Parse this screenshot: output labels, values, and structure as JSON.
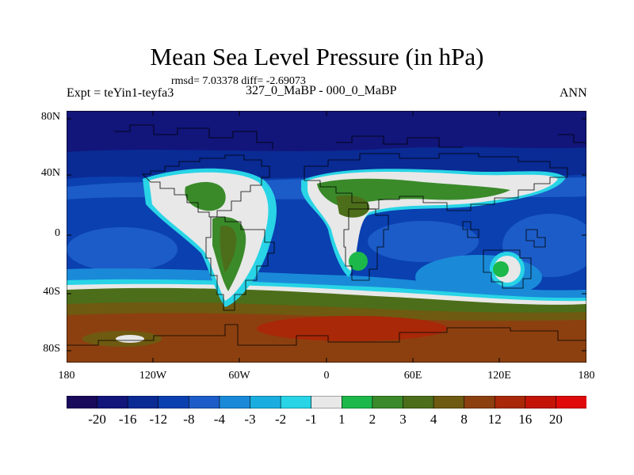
{
  "title": "Mean Sea Level Pressure (in hPa)",
  "stats": "rmsd= 7.03378 diff= -2.69073",
  "left_label": "Expt = teYin1-teyfa3",
  "center_label": "327_0_MaBP - 000_0_MaBP",
  "right_label": "ANN",
  "lat_labels": [
    "80N",
    "40N",
    "0",
    "40S",
    "80S"
  ],
  "lon_labels": [
    "180",
    "120W",
    "60W",
    "0",
    "60E",
    "120E",
    "180"
  ],
  "colorbar": {
    "colors": [
      "#1a0a5c",
      "#12157a",
      "#0a2a94",
      "#0a40b0",
      "#1c5cc8",
      "#1a8ad8",
      "#1aaee0",
      "#28d4e6",
      "#e8e8e8",
      "#1cb84a",
      "#3a8a2a",
      "#4c6e1a",
      "#6e5a10",
      "#8c4010",
      "#a82808",
      "#c41408",
      "#e00a0a"
    ],
    "labels": [
      "-20",
      "-16",
      "-12",
      "-8",
      "-4",
      "-3",
      "-2",
      "-1",
      "1",
      "2",
      "3",
      "4",
      "8",
      "12",
      "16",
      "20"
    ]
  }
}
